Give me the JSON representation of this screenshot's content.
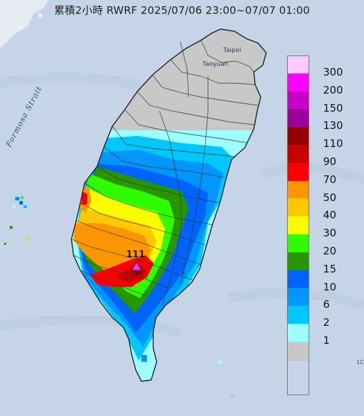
{
  "header": {
    "title": "累積2小時 RWRF 2025/07/06 23:00~07/07 01:00"
  },
  "map": {
    "sea_label": "Formosa Strait",
    "cities": [
      {
        "id": "taipei",
        "label": "Taipei"
      },
      {
        "id": "taoyuan",
        "label": "Taoyuan"
      }
    ],
    "max_marker": {
      "label": "111",
      "value": 111
    },
    "edge_label": "1C"
  },
  "legend": {
    "unit_levels": [
      {
        "label": "300",
        "color": "#fec9fe"
      },
      {
        "label": "200",
        "color": "#fd00fd"
      },
      {
        "label": "150",
        "color": "#c900c9"
      },
      {
        "label": "130",
        "color": "#9b009b"
      },
      {
        "label": "110",
        "color": "#970000"
      },
      {
        "label": "90",
        "color": "#c90000"
      },
      {
        "label": "70",
        "color": "#fc0000"
      },
      {
        "label": "50",
        "color": "#fc9600"
      },
      {
        "label": "40",
        "color": "#fcc800"
      },
      {
        "label": "30",
        "color": "#fcfc00"
      },
      {
        "label": "20",
        "color": "#30fc00"
      },
      {
        "label": "15",
        "color": "#289600"
      },
      {
        "label": "10",
        "color": "#0063fc"
      },
      {
        "label": "6",
        "color": "#0096fc"
      },
      {
        "label": "2",
        "color": "#00c8fc"
      },
      {
        "label": "1",
        "color": "#9efdfd"
      },
      {
        "label": "",
        "color": "#c8c8c8"
      }
    ]
  }
}
